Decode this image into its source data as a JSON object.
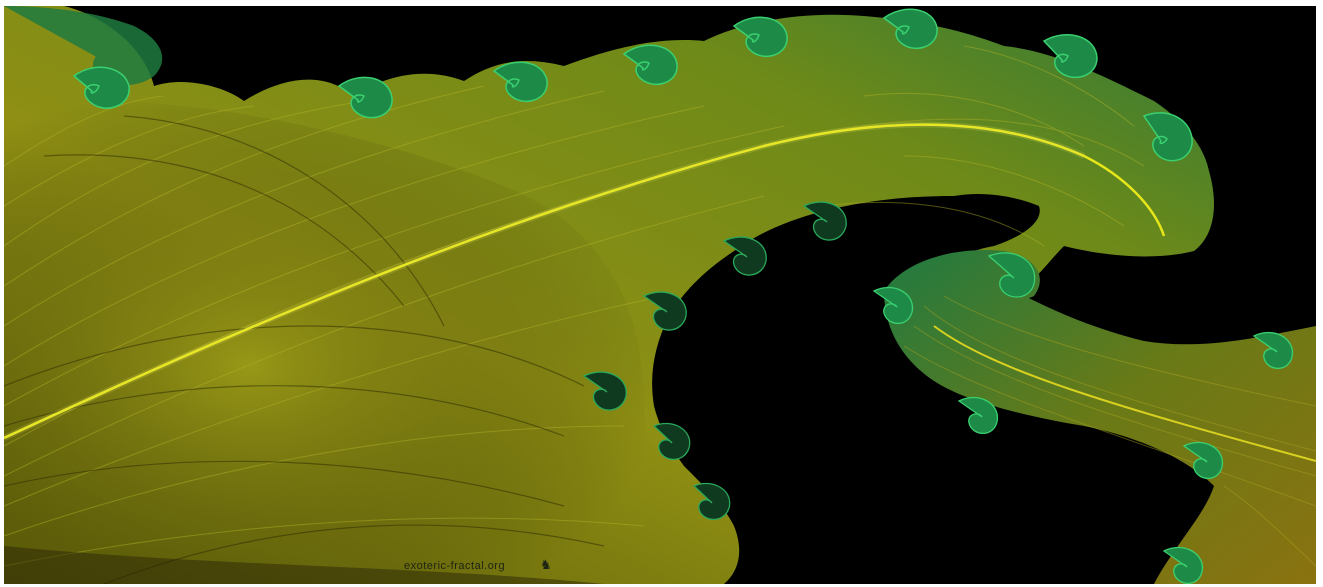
{
  "image": {
    "subject": "fractal-fern",
    "colors": {
      "background": "#000000",
      "frame": "#ffffff",
      "spine": "#e8e81c",
      "frond_deep": "#4a4a06",
      "frond_mid": "#8a8a12",
      "frond_light": "#b8b820",
      "edge_green": "#1f8a4a",
      "edge_bright": "#3ad070"
    }
  },
  "watermark": {
    "text": "exoteric-fractal.org",
    "glyph": "♞"
  }
}
